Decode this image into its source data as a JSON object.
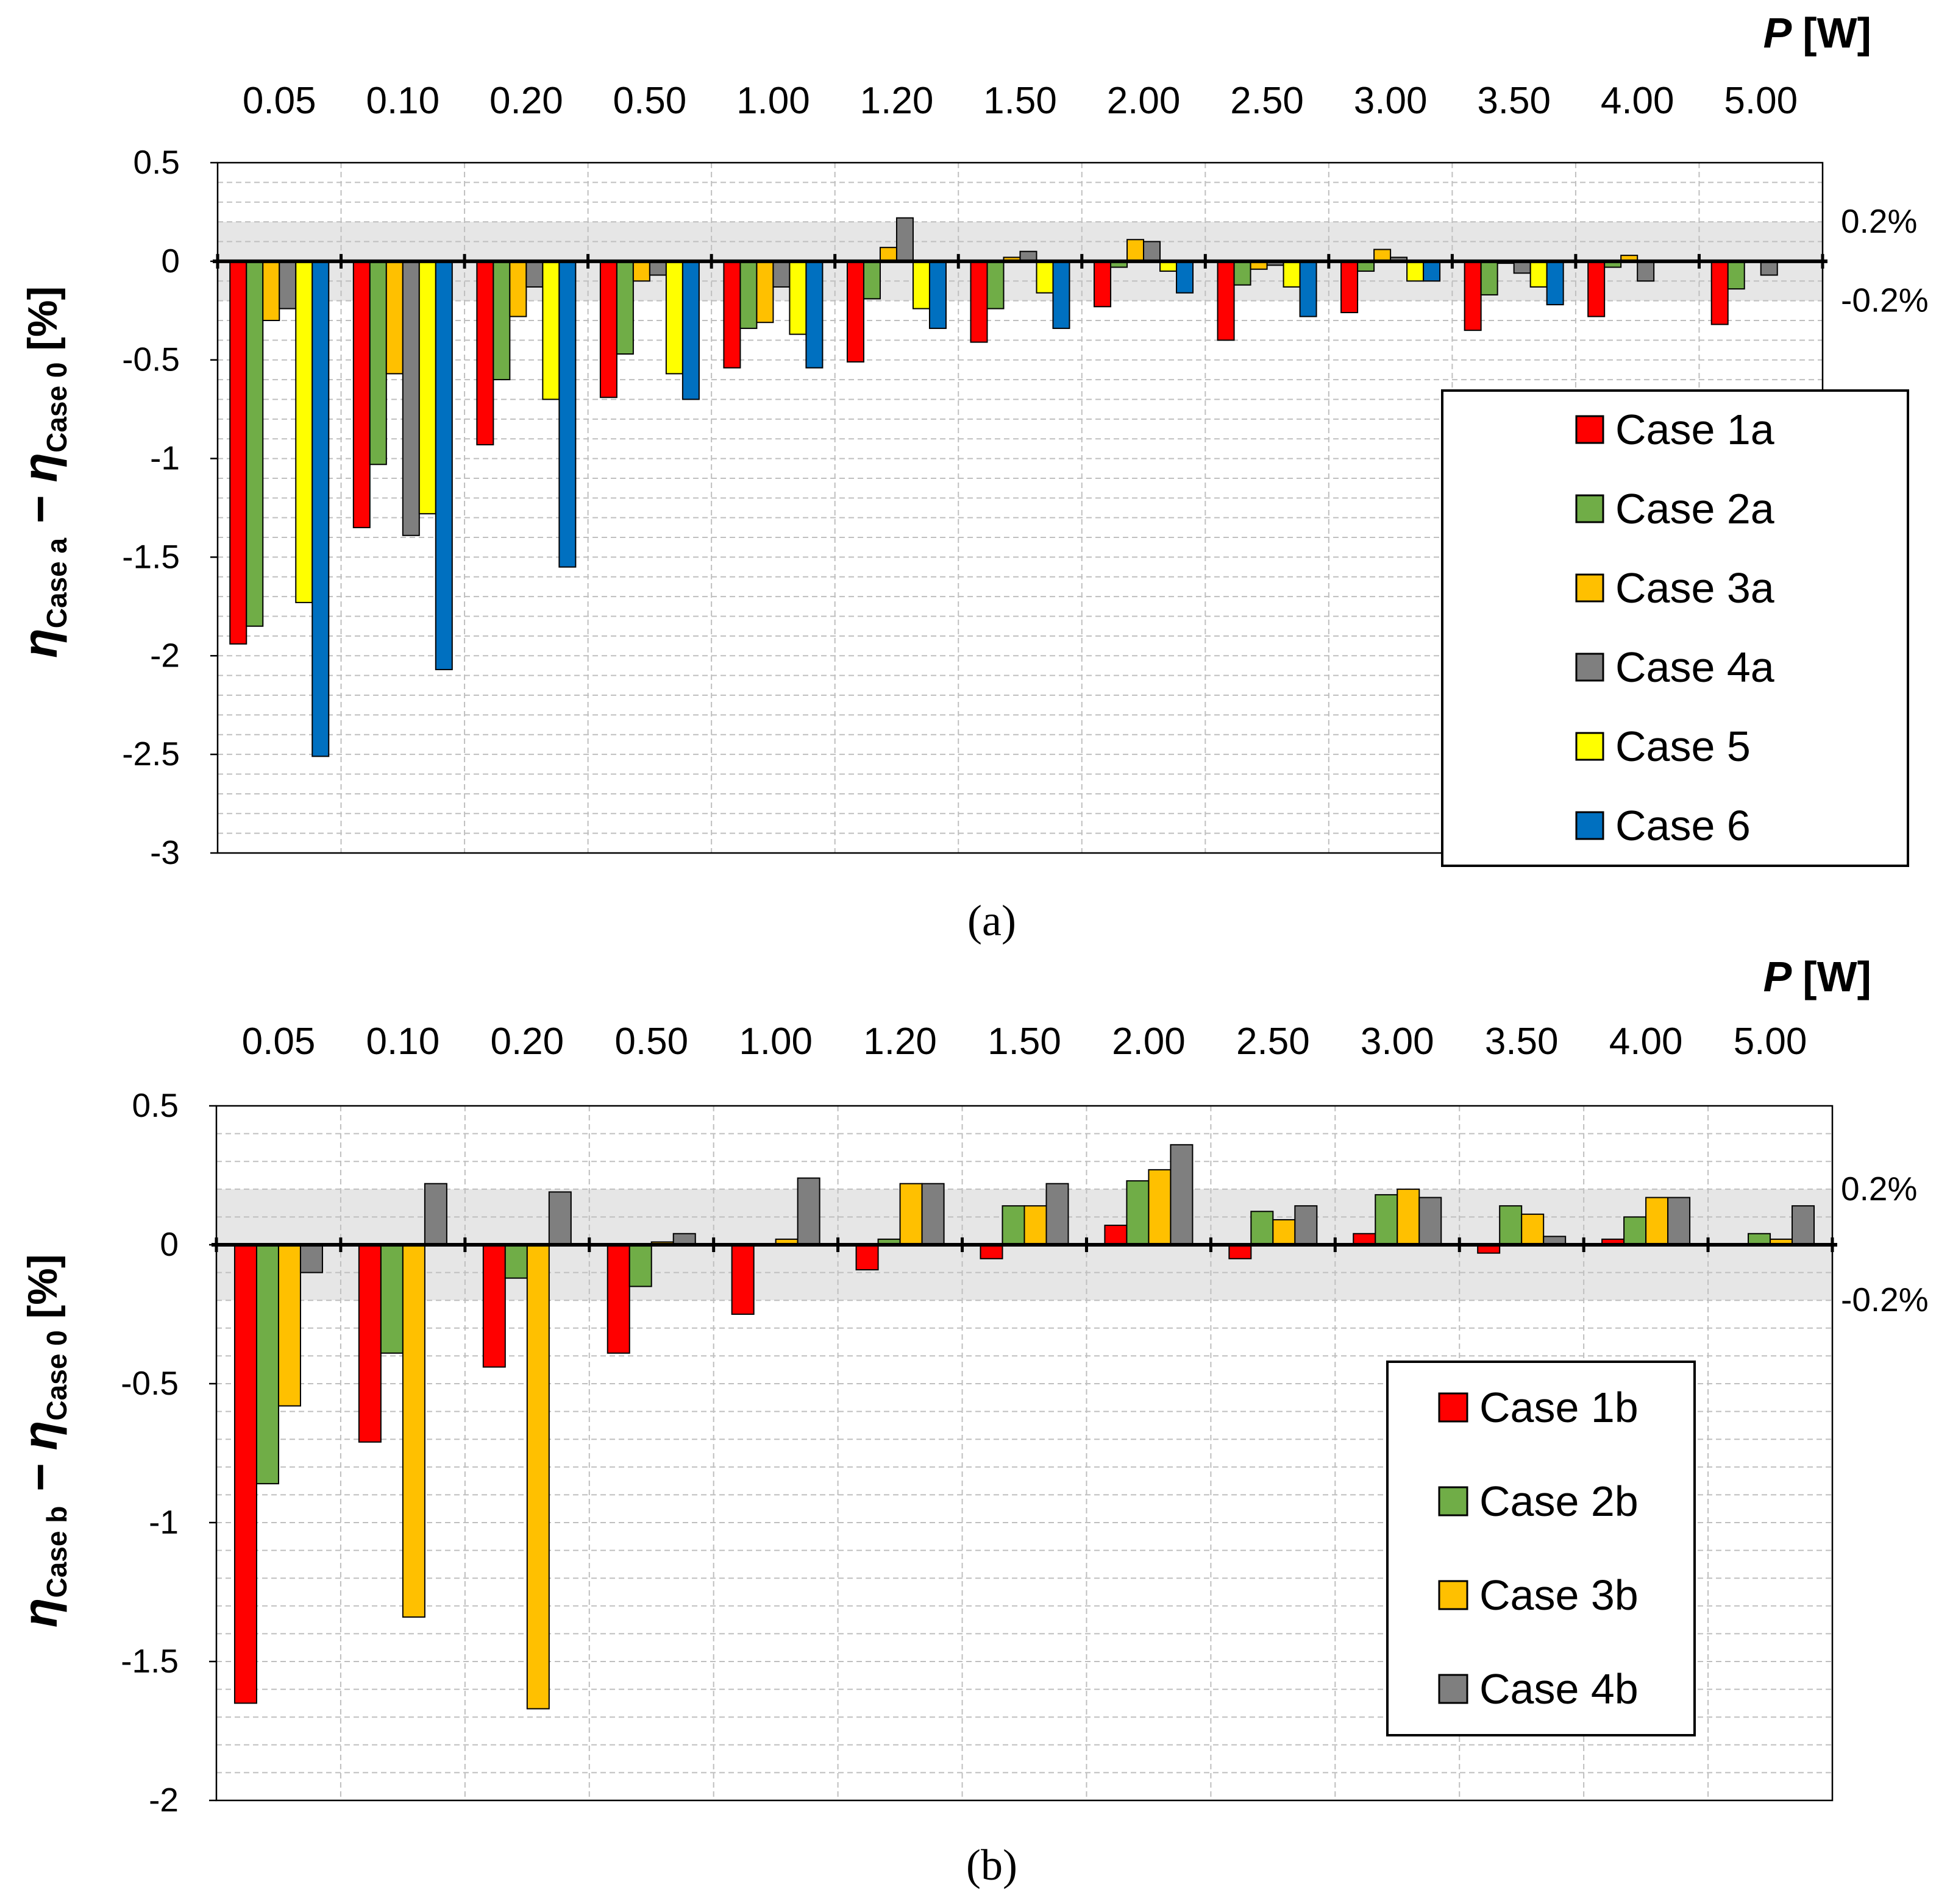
{
  "colors": {
    "Case 1": "#ff0000",
    "Case 2": "#70ad47",
    "Case 3": "#ffc000",
    "Case 4": "#7f7f7f",
    "Case 5": "#ffff00",
    "Case 6": "#0070c0",
    "band": "#e6e6e6"
  },
  "chart_data": [
    {
      "type": "bar",
      "caption": "(a)",
      "title": "",
      "xlabel": "P [W]",
      "xlabel_var": "P",
      "xlabel_unit": "[W]",
      "ylabel": "ηCase a − ηCase 0 [%]",
      "ylabel_main": "η",
      "ylabel_sub1": "Case a",
      "ylabel_mid": " − η",
      "ylabel_sub2": "Case 0",
      "ylabel_unit": " [%]",
      "ylim": [
        -3,
        0.5
      ],
      "yticks": [
        "0.5",
        "0",
        "-0.5",
        "-1",
        "-1.5",
        "-2",
        "-2.5",
        "-3"
      ],
      "band": [
        -0.2,
        0.2
      ],
      "band_labels": [
        "0.2%",
        "-0.2%"
      ],
      "grid": true,
      "legend_position": "right",
      "categories": [
        "0.05",
        "0.10",
        "0.20",
        "0.50",
        "1.00",
        "1.20",
        "1.50",
        "2.00",
        "2.50",
        "3.00",
        "3.50",
        "4.00",
        "5.00"
      ],
      "series": [
        {
          "name": "Case 1a",
          "color_key": "Case 1",
          "values": [
            -1.94,
            -1.35,
            -0.93,
            -0.69,
            -0.54,
            -0.51,
            -0.41,
            -0.23,
            -0.4,
            -0.26,
            -0.35,
            -0.28,
            -0.32
          ]
        },
        {
          "name": "Case 2a",
          "color_key": "Case 2",
          "values": [
            -1.85,
            -1.03,
            -0.6,
            -0.47,
            -0.34,
            -0.19,
            -0.24,
            -0.03,
            -0.12,
            -0.05,
            -0.17,
            -0.03,
            -0.14
          ]
        },
        {
          "name": "Case 3a",
          "color_key": "Case 3",
          "values": [
            -0.3,
            -0.57,
            -0.28,
            -0.1,
            -0.31,
            0.07,
            0.02,
            0.11,
            -0.04,
            0.06,
            -0.01,
            0.03,
            0.0
          ]
        },
        {
          "name": "Case 4a",
          "color_key": "Case 4",
          "values": [
            -0.24,
            -1.39,
            -0.13,
            -0.07,
            -0.13,
            0.22,
            0.05,
            0.1,
            -0.02,
            0.02,
            -0.06,
            -0.1,
            -0.07
          ]
        },
        {
          "name": "Case 5",
          "color_key": "Case 5",
          "values": [
            -1.73,
            -1.28,
            -0.7,
            -0.57,
            -0.37,
            -0.24,
            -0.16,
            -0.05,
            -0.13,
            -0.1,
            -0.13,
            0.0,
            0.0
          ]
        },
        {
          "name": "Case 6",
          "color_key": "Case 6",
          "values": [
            -2.51,
            -2.07,
            -1.55,
            -0.7,
            -0.54,
            -0.34,
            -0.34,
            -0.16,
            -0.28,
            -0.1,
            -0.22,
            0.0,
            0.0
          ]
        }
      ]
    },
    {
      "type": "bar",
      "caption": "(b)",
      "title": "",
      "xlabel": "P [W]",
      "xlabel_var": "P",
      "xlabel_unit": "[W]",
      "ylabel": "ηCase b − ηCase 0 [%]",
      "ylabel_main": "η",
      "ylabel_sub1": "Case b",
      "ylabel_mid": " − η",
      "ylabel_sub2": "Case 0",
      "ylabel_unit": " [%]",
      "ylim": [
        -2,
        0.5
      ],
      "yticks": [
        "0.5",
        "0",
        "-0.5",
        "-1",
        "-1.5",
        "-2"
      ],
      "band": [
        -0.2,
        0.2
      ],
      "band_labels": [
        "0.2%",
        "-0.2%"
      ],
      "grid": true,
      "legend_position": "right",
      "categories": [
        "0.05",
        "0.10",
        "0.20",
        "0.50",
        "1.00",
        "1.20",
        "1.50",
        "2.00",
        "2.50",
        "3.00",
        "3.50",
        "4.00",
        "5.00"
      ],
      "series": [
        {
          "name": "Case 1b",
          "color_key": "Case 1",
          "values": [
            -1.65,
            -0.71,
            -0.44,
            -0.39,
            -0.25,
            -0.09,
            -0.05,
            0.07,
            -0.05,
            0.04,
            -0.03,
            0.02,
            0.0
          ]
        },
        {
          "name": "Case 2b",
          "color_key": "Case 2",
          "values": [
            -0.86,
            -0.39,
            -0.12,
            -0.15,
            0.0,
            0.02,
            0.14,
            0.23,
            0.12,
            0.18,
            0.14,
            0.1,
            0.04
          ]
        },
        {
          "name": "Case 3b",
          "color_key": "Case 3",
          "values": [
            -0.58,
            -1.34,
            -1.67,
            0.01,
            0.02,
            0.22,
            0.14,
            0.27,
            0.09,
            0.2,
            0.11,
            0.17,
            0.02
          ]
        },
        {
          "name": "Case 4b",
          "color_key": "Case 4",
          "values": [
            -0.1,
            0.22,
            0.19,
            0.04,
            0.24,
            0.22,
            0.22,
            0.36,
            0.14,
            0.17,
            0.03,
            0.17,
            0.14
          ]
        }
      ]
    }
  ]
}
